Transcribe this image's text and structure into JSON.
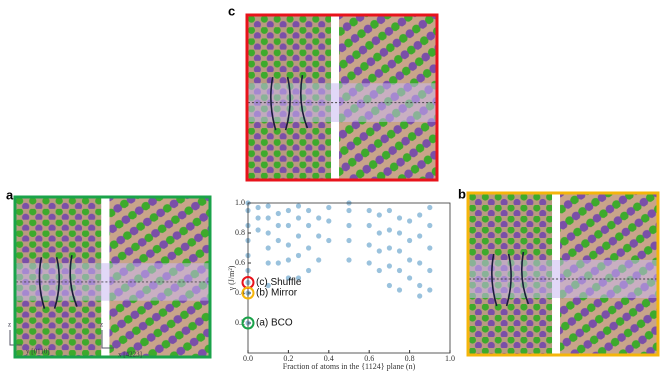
{
  "chart_data": {
    "type": "scatter",
    "x_label": "Fraction of atoms in the {1124} plane (n)",
    "y_label": "γ (J/m²)",
    "x": [
      0,
      0,
      0,
      0,
      0,
      0,
      0,
      0,
      0,
      0.05,
      0.05,
      0.05,
      0.1,
      0.1,
      0.1,
      0.1,
      0.1,
      0.1,
      0.15,
      0.15,
      0.15,
      0.15,
      0.2,
      0.2,
      0.2,
      0.2,
      0.2,
      0.25,
      0.25,
      0.25,
      0.25,
      0.25,
      0.3,
      0.3,
      0.3,
      0.3,
      0.35,
      0.35,
      0.35,
      0.4,
      0.4,
      0.4,
      0.5,
      0.5,
      0.5,
      0.5,
      0.5,
      0.6,
      0.6,
      0.6,
      0.6,
      0.65,
      0.65,
      0.65,
      0.65,
      0.7,
      0.7,
      0.7,
      0.7,
      0.7,
      0.75,
      0.75,
      0.75,
      0.75,
      0.75,
      0.8,
      0.8,
      0.8,
      0.8,
      0.85,
      0.85,
      0.85,
      0.85,
      0.85,
      0.9,
      0.9,
      0.9,
      0.9,
      0.9
    ],
    "y": [
      0.2,
      0.4,
      0.47,
      0.55,
      0.65,
      0.75,
      0.85,
      0.95,
      1.0,
      0.82,
      0.9,
      0.97,
      0.45,
      0.6,
      0.7,
      0.8,
      0.9,
      0.98,
      0.6,
      0.75,
      0.85,
      0.93,
      0.5,
      0.62,
      0.72,
      0.85,
      0.95,
      0.5,
      0.65,
      0.78,
      0.9,
      0.98,
      0.55,
      0.7,
      0.85,
      0.95,
      0.62,
      0.78,
      0.9,
      0.75,
      0.88,
      0.97,
      0.62,
      0.75,
      0.85,
      0.95,
      1.0,
      0.6,
      0.72,
      0.85,
      0.95,
      0.55,
      0.68,
      0.8,
      0.92,
      0.45,
      0.58,
      0.7,
      0.82,
      0.95,
      0.42,
      0.55,
      0.68,
      0.8,
      0.9,
      0.5,
      0.62,
      0.75,
      0.88,
      0.38,
      0.45,
      0.6,
      0.78,
      0.92,
      0.42,
      0.55,
      0.7,
      0.85,
      0.97
    ],
    "color": "#1f77b4",
    "xlim": [
      0,
      1.0
    ],
    "ylim": [
      0,
      1.0
    ],
    "xticks": [
      {
        "value": 0,
        "label": "0.0"
      },
      0.2,
      0.4,
      0.6,
      0.8,
      {
        "value": 1,
        "label": "1.0"
      }
    ],
    "yticks": [
      0.2,
      0.4,
      0.6,
      0.8,
      {
        "value": 1,
        "label": "1.0"
      }
    ],
    "annotations": [
      {
        "text": "(c) Shuffle",
        "x": 0,
        "y": 0.47,
        "color": "#e8131b"
      },
      {
        "text": "(b) Mirror",
        "x": 0,
        "y": 0.4,
        "color": "#f5b50a"
      },
      {
        "text": "(a) BCO",
        "x": 0,
        "y": 0.2,
        "color": "#1aa34a"
      }
    ],
    "panels": [
      {
        "label": "c",
        "color": "#e8131b"
      },
      {
        "label": "a",
        "color": "#1aa34a"
      },
      {
        "label": "b",
        "color": "#f5b50a"
      }
    ],
    "axis_hints": [
      "z",
      "y [0110]",
      "z",
      "x [4223]"
    ]
  }
}
